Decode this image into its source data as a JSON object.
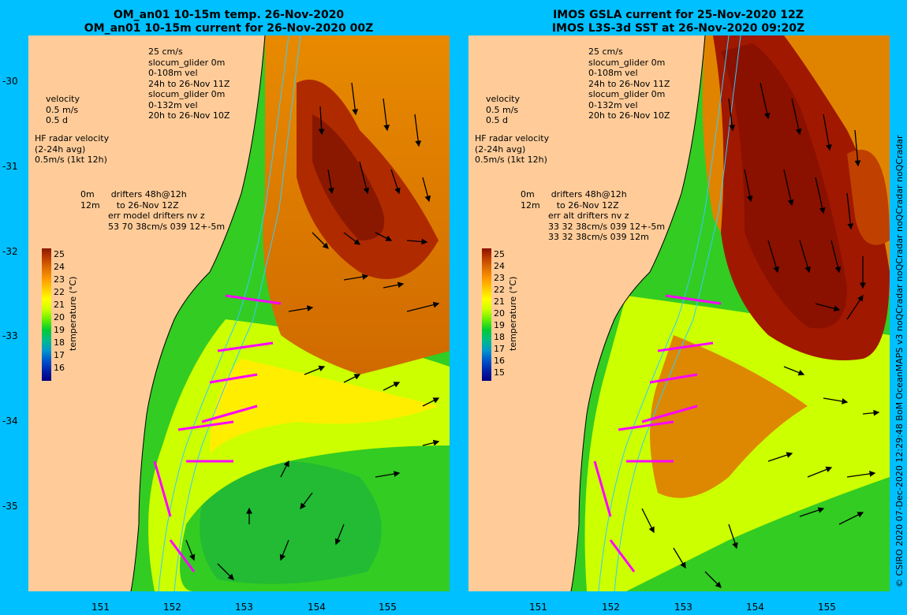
{
  "left": {
    "title_line1": "OM_an01 10-15m temp. 26-Nov-2020",
    "title_line2": "OM_an01 10-15m current for 26-Nov-2020 00Z",
    "ann_main": "25 cm/s\nslocum_glider 0m\n0-108m vel\n24h to 26-Nov 11Z\nslocum_glider 0m\n0-132m vel\n20h to 26-Nov 10Z",
    "ann_velocity": "velocity\n0.5 m/s\n0.5 d",
    "ann_hf": "HF radar velocity\n(2-24h avg)\n0.5m/s (1kt 12h)",
    "ann_drift": "0m      drifters 48h@12h\n12m      to 26-Nov 12Z\n          err model drifters nv z\n          53 70 38cm/s 039 12+-5m",
    "cbar_ticks": [
      "25",
      "24",
      "23",
      "22",
      "21",
      "20",
      "19",
      "18",
      "17",
      "16"
    ],
    "cbar_label": "temperature (°C)"
  },
  "right": {
    "title_line1": "IMOS GSLA current for 25-Nov-2020 12Z",
    "title_line2": "IMOS L3S-3d SST at 26-Nov-2020 09:20Z",
    "ann_main": "25 cm/s\nslocum_glider 0m\n0-108m vel\n24h to 26-Nov 11Z\nslocum_glider 0m\n0-132m vel\n20h to 26-Nov 10Z",
    "ann_velocity": "velocity\n0.5 m/s\n0.5 d",
    "ann_hf": "HF radar velocity\n(2-24h avg)\n0.5m/s (1kt 12h)",
    "ann_drift": "0m      drifters 48h@12h\n12m      to 26-Nov 12Z\n          err alt drifters nv z\n          33 32 38cm/s 039 12+-5m\n          33 32 38cm/s 039 12m",
    "cbar_ticks": [
      "25",
      "24",
      "23",
      "22",
      "21",
      "20",
      "19",
      "18",
      "17",
      "16",
      "15"
    ],
    "cbar_label": "temperature (°C)"
  },
  "lat_ticks": [
    "-30",
    "-31",
    "-32",
    "-33",
    "-34",
    "-35"
  ],
  "lon_ticks": [
    "151",
    "152",
    "153",
    "154",
    "155"
  ],
  "credit": "© CSIRO 2020   07-Dec-2020 12:29:48 BoM OceanMAPS v3 noQCradar noQCradar noQCradar noQCradar",
  "colors": {
    "background": "#00c0ff",
    "land": "#ffcc99",
    "warm": "#a02000",
    "cool": "#00cc33",
    "glider_a": "#ff00ff",
    "glider_b": "#0000cc",
    "isobath": "#33ccff"
  }
}
